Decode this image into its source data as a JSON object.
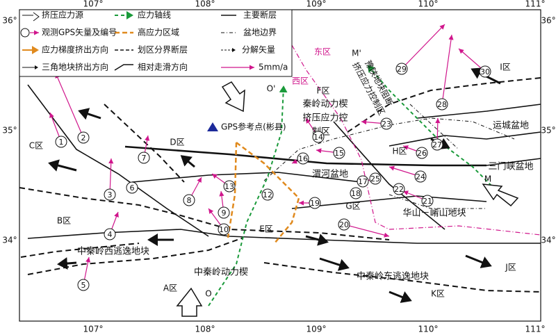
{
  "legend": [
    "挤压应力源",
    "观测GPS矢量及编号",
    "应力梯度挤出方向",
    "三角地块挤出方向",
    "应力轴线",
    "高应力区域",
    "划区分界断层",
    "相对走滑方向",
    "主要断层",
    "盆地边界",
    "分解矢量",
    "5mm/a"
  ],
  "axes": {
    "top": [
      "107°",
      "108°",
      "109°",
      "110°",
      "111°"
    ],
    "bottom": [
      "107°",
      "108°",
      "109°",
      "110°",
      "111°"
    ],
    "left": [
      "36°",
      "35°",
      "34°"
    ],
    "right": [
      "36°",
      "35°",
      "34°"
    ]
  },
  "regions": [
    "A区",
    "B区",
    "C区",
    "D区",
    "E区",
    "F区",
    "G区",
    "H区",
    "I区",
    "J区",
    "K区"
  ],
  "zones": [
    "东区",
    "西区"
  ],
  "places": [
    "秦岭动力楔",
    "挤压应力控",
    "制区",
    "渭河盆地",
    "运城盆地",
    "三门峡盆地",
    "华山－崤山地块",
    "中秦岭西逃逸地块",
    "中秦岭东逃逸地块",
    "中秦岭动力楔"
  ],
  "rotated": [
    "豫陕地块阻断",
    "挤压应力控制区"
  ],
  "gps_reference": "GPS参考点(彬县)",
  "points": [
    "O",
    "O'",
    "M",
    "M'"
  ],
  "stations": [
    "1",
    "2",
    "3",
    "4",
    "5",
    "6",
    "7",
    "8",
    "9",
    "10",
    "12",
    "13",
    "14",
    "15",
    "16",
    "17",
    "18",
    "19",
    "20",
    "21",
    "22",
    "23",
    "24",
    "25",
    "26",
    "27",
    "28",
    "29",
    "30"
  ]
}
